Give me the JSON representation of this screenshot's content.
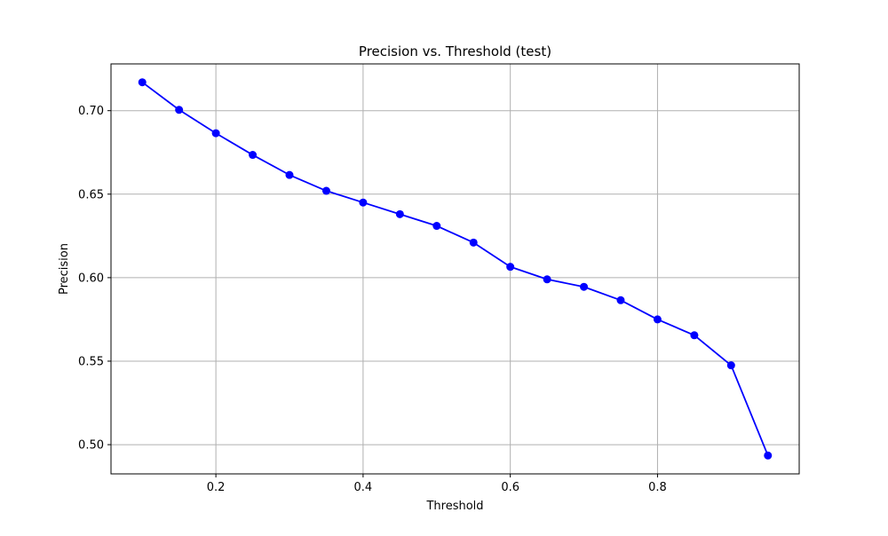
{
  "chart_data": {
    "type": "line",
    "title": "Precision vs. Threshold (test)",
    "xlabel": "Threshold",
    "ylabel": "Precision",
    "xlim": [
      0.0575,
      0.9925
    ],
    "ylim": [
      0.4825,
      0.728
    ],
    "xticks": [
      0.2,
      0.4,
      0.6,
      0.8
    ],
    "xtick_labels": [
      "0.2",
      "0.4",
      "0.6",
      "0.8"
    ],
    "yticks": [
      0.5,
      0.55,
      0.6,
      0.65,
      0.7
    ],
    "ytick_labels": [
      "0.50",
      "0.55",
      "0.60",
      "0.65",
      "0.70"
    ],
    "grid": true,
    "series": [
      {
        "color": "#0000ff",
        "marker": "circle",
        "x": [
          0.1,
          0.15,
          0.2,
          0.25,
          0.3,
          0.35,
          0.4,
          0.45,
          0.5,
          0.55,
          0.6,
          0.65,
          0.7,
          0.75,
          0.8,
          0.85,
          0.9,
          0.95
        ],
        "y": [
          0.717,
          0.7005,
          0.6865,
          0.6735,
          0.6615,
          0.652,
          0.645,
          0.638,
          0.631,
          0.621,
          0.6065,
          0.599,
          0.5945,
          0.5865,
          0.575,
          0.5655,
          0.5475,
          0.4935
        ]
      }
    ]
  }
}
